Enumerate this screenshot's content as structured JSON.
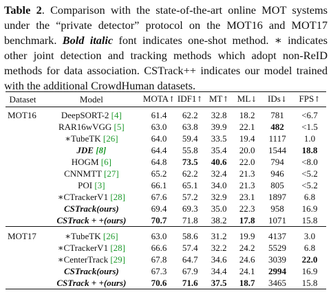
{
  "caption": {
    "label": "Table 2",
    "text1": ". Comparison with the state-of-the-art online MOT systems under the “private detector” protocol on the MOT16 and MOT17 benchmark. ",
    "bold_italic": "Bold italic",
    "text2": " font indicates one-shot method. ∗ indicates other joint detection and tracking methods which adopt non-ReID methods for data association. CSTrack++ indicates our model trained with the additional CrowdHuman datasets."
  },
  "headers": [
    "Dataset",
    "Model",
    "MOTA↑",
    "IDF1↑",
    "MT↑",
    "ML↓",
    "IDs↓",
    "FPS↑"
  ],
  "groups": [
    {
      "dataset": "MOT16",
      "rows": [
        {
          "name": "DeepSORT-2",
          "ref": "[4]",
          "mota": "61.4",
          "idf1": "62.2",
          "mt": "32.8",
          "ml": "18.2",
          "ids": "781",
          "fps": "<6.7"
        },
        {
          "name": "RAR16wVGG",
          "ref": "[5]",
          "mota": "63.0",
          "idf1": "63.8",
          "mt": "39.9",
          "ml": "22.1",
          "ids": "482",
          "fps": "<1.5"
        },
        {
          "name": "∗TubeTK",
          "ref": "[26]",
          "mota": "64.0",
          "idf1": "59.4",
          "mt": "33.5",
          "ml": "19.4",
          "ids": "1117",
          "fps": "1.0"
        },
        {
          "name": "JDE",
          "ref": "[8]",
          "mota": "64.4",
          "idf1": "55.8",
          "mt": "35.4",
          "ml": "20.0",
          "ids": "1544",
          "fps": "18.8"
        },
        {
          "name": "HOGM",
          "ref": "[6]",
          "mota": "64.8",
          "idf1": "73.5",
          "mt": "40.6",
          "ml": "22.0",
          "ids": "794",
          "fps": "<8.0"
        },
        {
          "name": "CNNMTT",
          "ref": "[27]",
          "mota": "65.2",
          "idf1": "62.2",
          "mt": "32.4",
          "ml": "21.3",
          "ids": "946",
          "fps": "<5.2"
        },
        {
          "name": "POI",
          "ref": "[3]",
          "mota": "66.1",
          "idf1": "65.1",
          "mt": "34.0",
          "ml": "21.3",
          "ids": "805",
          "fps": "<5.2"
        },
        {
          "name": "∗CTrackerV1",
          "ref": "[28]",
          "mota": "67.6",
          "idf1": "57.2",
          "mt": "32.9",
          "ml": "23.1",
          "ids": "1897",
          "fps": "6.8"
        },
        {
          "name": "CSTrack(ours)",
          "ref": "",
          "mota": "69.4",
          "idf1": "69.3",
          "mt": "35.0",
          "ml": "22.3",
          "ids": "958",
          "fps": "16.9"
        },
        {
          "name": "CSTrack + +(ours)",
          "ref": "",
          "mota": "70.7",
          "idf1": "71.8",
          "mt": "38.2",
          "ml": "17.8",
          "ids": "1071",
          "fps": "15.8"
        }
      ]
    },
    {
      "dataset": "MOT17",
      "rows": [
        {
          "name": "∗TubeTK",
          "ref": "[26]",
          "mota": "63.0",
          "idf1": "58.6",
          "mt": "31.2",
          "ml": "19.9",
          "ids": "4137",
          "fps": "3.0"
        },
        {
          "name": "∗CTrackerV1",
          "ref": "[28]",
          "mota": "66.6",
          "idf1": "57.4",
          "mt": "32.2",
          "ml": "24.2",
          "ids": "5529",
          "fps": "6.8"
        },
        {
          "name": "∗CenterTrack",
          "ref": "[29]",
          "mota": "67.8",
          "idf1": "64.7",
          "mt": "34.6",
          "ml": "24.6",
          "ids": "3039",
          "fps": "22.0"
        },
        {
          "name": "CSTrack(ours)",
          "ref": "",
          "mota": "67.3",
          "idf1": "67.9",
          "mt": "34.4",
          "ml": "24.1",
          "ids": "2994",
          "fps": "16.9"
        },
        {
          "name": "CSTrack + +(ours)",
          "ref": "",
          "mota": "70.6",
          "idf1": "71.6",
          "mt": "37.5",
          "ml": "18.7",
          "ids": "3465",
          "fps": "15.8"
        }
      ]
    }
  ],
  "accent": {
    "reference_color": "#1e9a2c"
  }
}
